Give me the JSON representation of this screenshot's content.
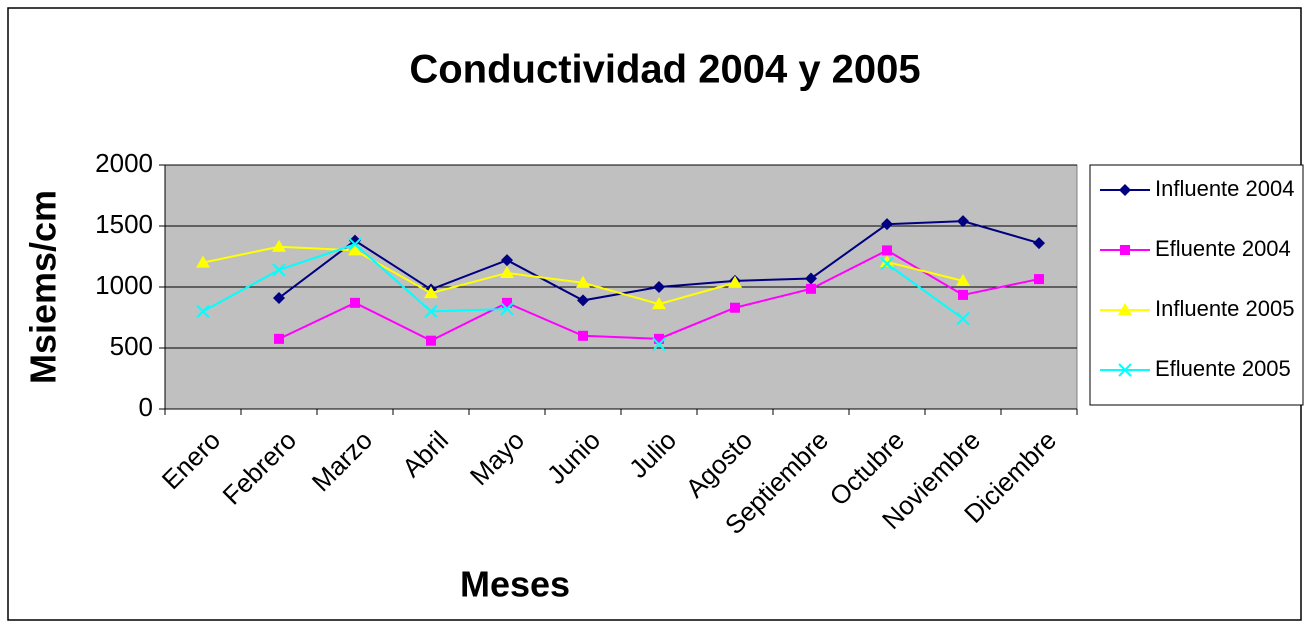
{
  "chart_data": {
    "type": "line",
    "title": "Conductividad 2004 y 2005",
    "x_label": "Meses",
    "y_label": "Msiems/cm",
    "categories": [
      "Enero",
      "Febrero",
      "Marzo",
      "Abril",
      "Mayo",
      "Junio",
      "Julio",
      "Agosto",
      "Septiembre",
      "Octubre",
      "Noviembre",
      "Diciembre"
    ],
    "series": [
      {
        "name": "Influente 2004",
        "color": "#000080",
        "marker": "diamond",
        "values": [
          null,
          910,
          1380,
          980,
          1220,
          890,
          1000,
          1050,
          1070,
          1515,
          1540,
          1360
        ]
      },
      {
        "name": "Efluente 2004",
        "color": "#ff00ff",
        "marker": "square",
        "values": [
          null,
          575,
          870,
          560,
          870,
          600,
          575,
          830,
          985,
          1300,
          935,
          1065
        ]
      },
      {
        "name": "Influente 2005",
        "color": "#ffff00",
        "marker": "triangle",
        "values": [
          1200,
          1330,
          1300,
          950,
          1115,
          1035,
          860,
          1035,
          null,
          1205,
          1050,
          null
        ]
      },
      {
        "name": "Efluente 2005",
        "color": "#00ffff",
        "marker": "x",
        "values": [
          800,
          1140,
          1350,
          800,
          820,
          null,
          530,
          null,
          null,
          1190,
          740,
          null
        ]
      }
    ],
    "ylim": [
      0,
      2000
    ],
    "yticks": [
      0,
      500,
      1000,
      1500,
      2000
    ],
    "grid": true,
    "legend": "right",
    "plot_background": "#c0c0c0"
  }
}
